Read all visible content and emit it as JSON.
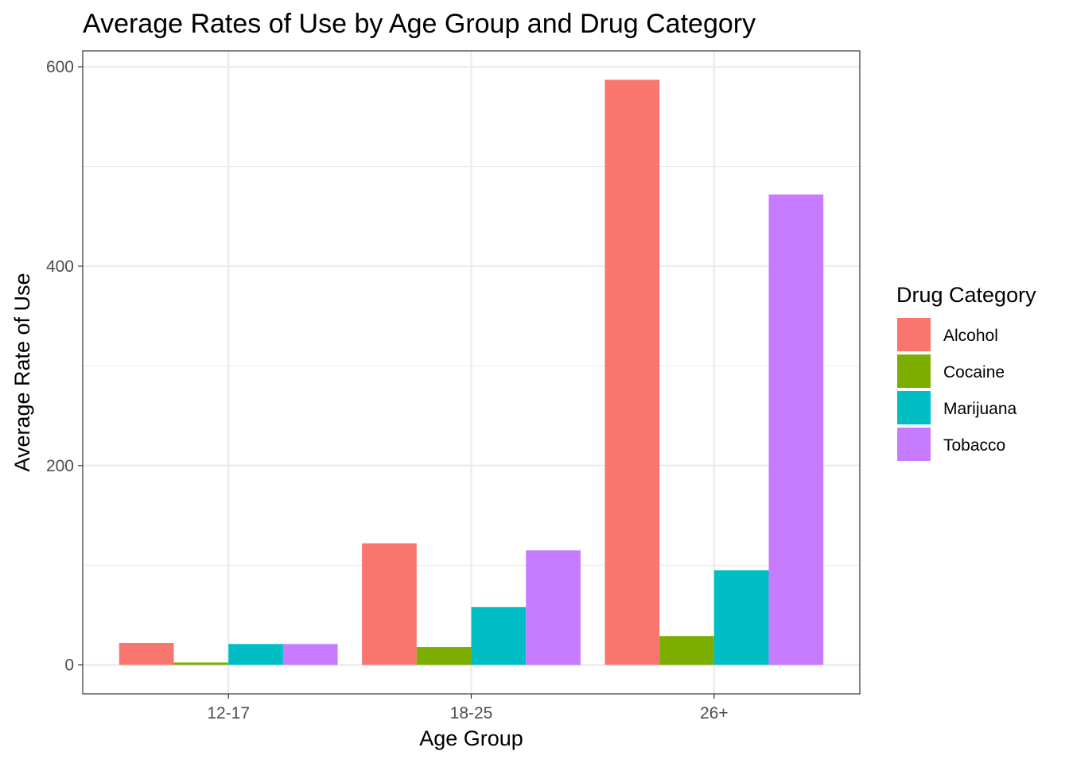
{
  "chart_data": {
    "type": "bar",
    "title": "Average Rates of Use by Age Group and Drug Category",
    "xlabel": "Age Group",
    "ylabel": "Average Rate of Use",
    "categories": [
      "12-17",
      "18-25",
      "26+"
    ],
    "series": [
      {
        "name": "Alcohol",
        "color": "#F8766D",
        "values": [
          22,
          122,
          587
        ]
      },
      {
        "name": "Cocaine",
        "color": "#7CAE00",
        "values": [
          2.5,
          18,
          29
        ]
      },
      {
        "name": "Marijuana",
        "color": "#00BFC4",
        "values": [
          21,
          58,
          95
        ]
      },
      {
        "name": "Tobacco",
        "color": "#C77CFF",
        "values": [
          21,
          115,
          472
        ]
      }
    ],
    "ylim": [
      -29,
      616
    ],
    "yticks": [
      0,
      200,
      400,
      600
    ],
    "ytick_labels": [
      "0",
      "200",
      "400",
      "600"
    ],
    "grid": true,
    "legend": {
      "title": "Drug Category",
      "placement": "right"
    }
  }
}
